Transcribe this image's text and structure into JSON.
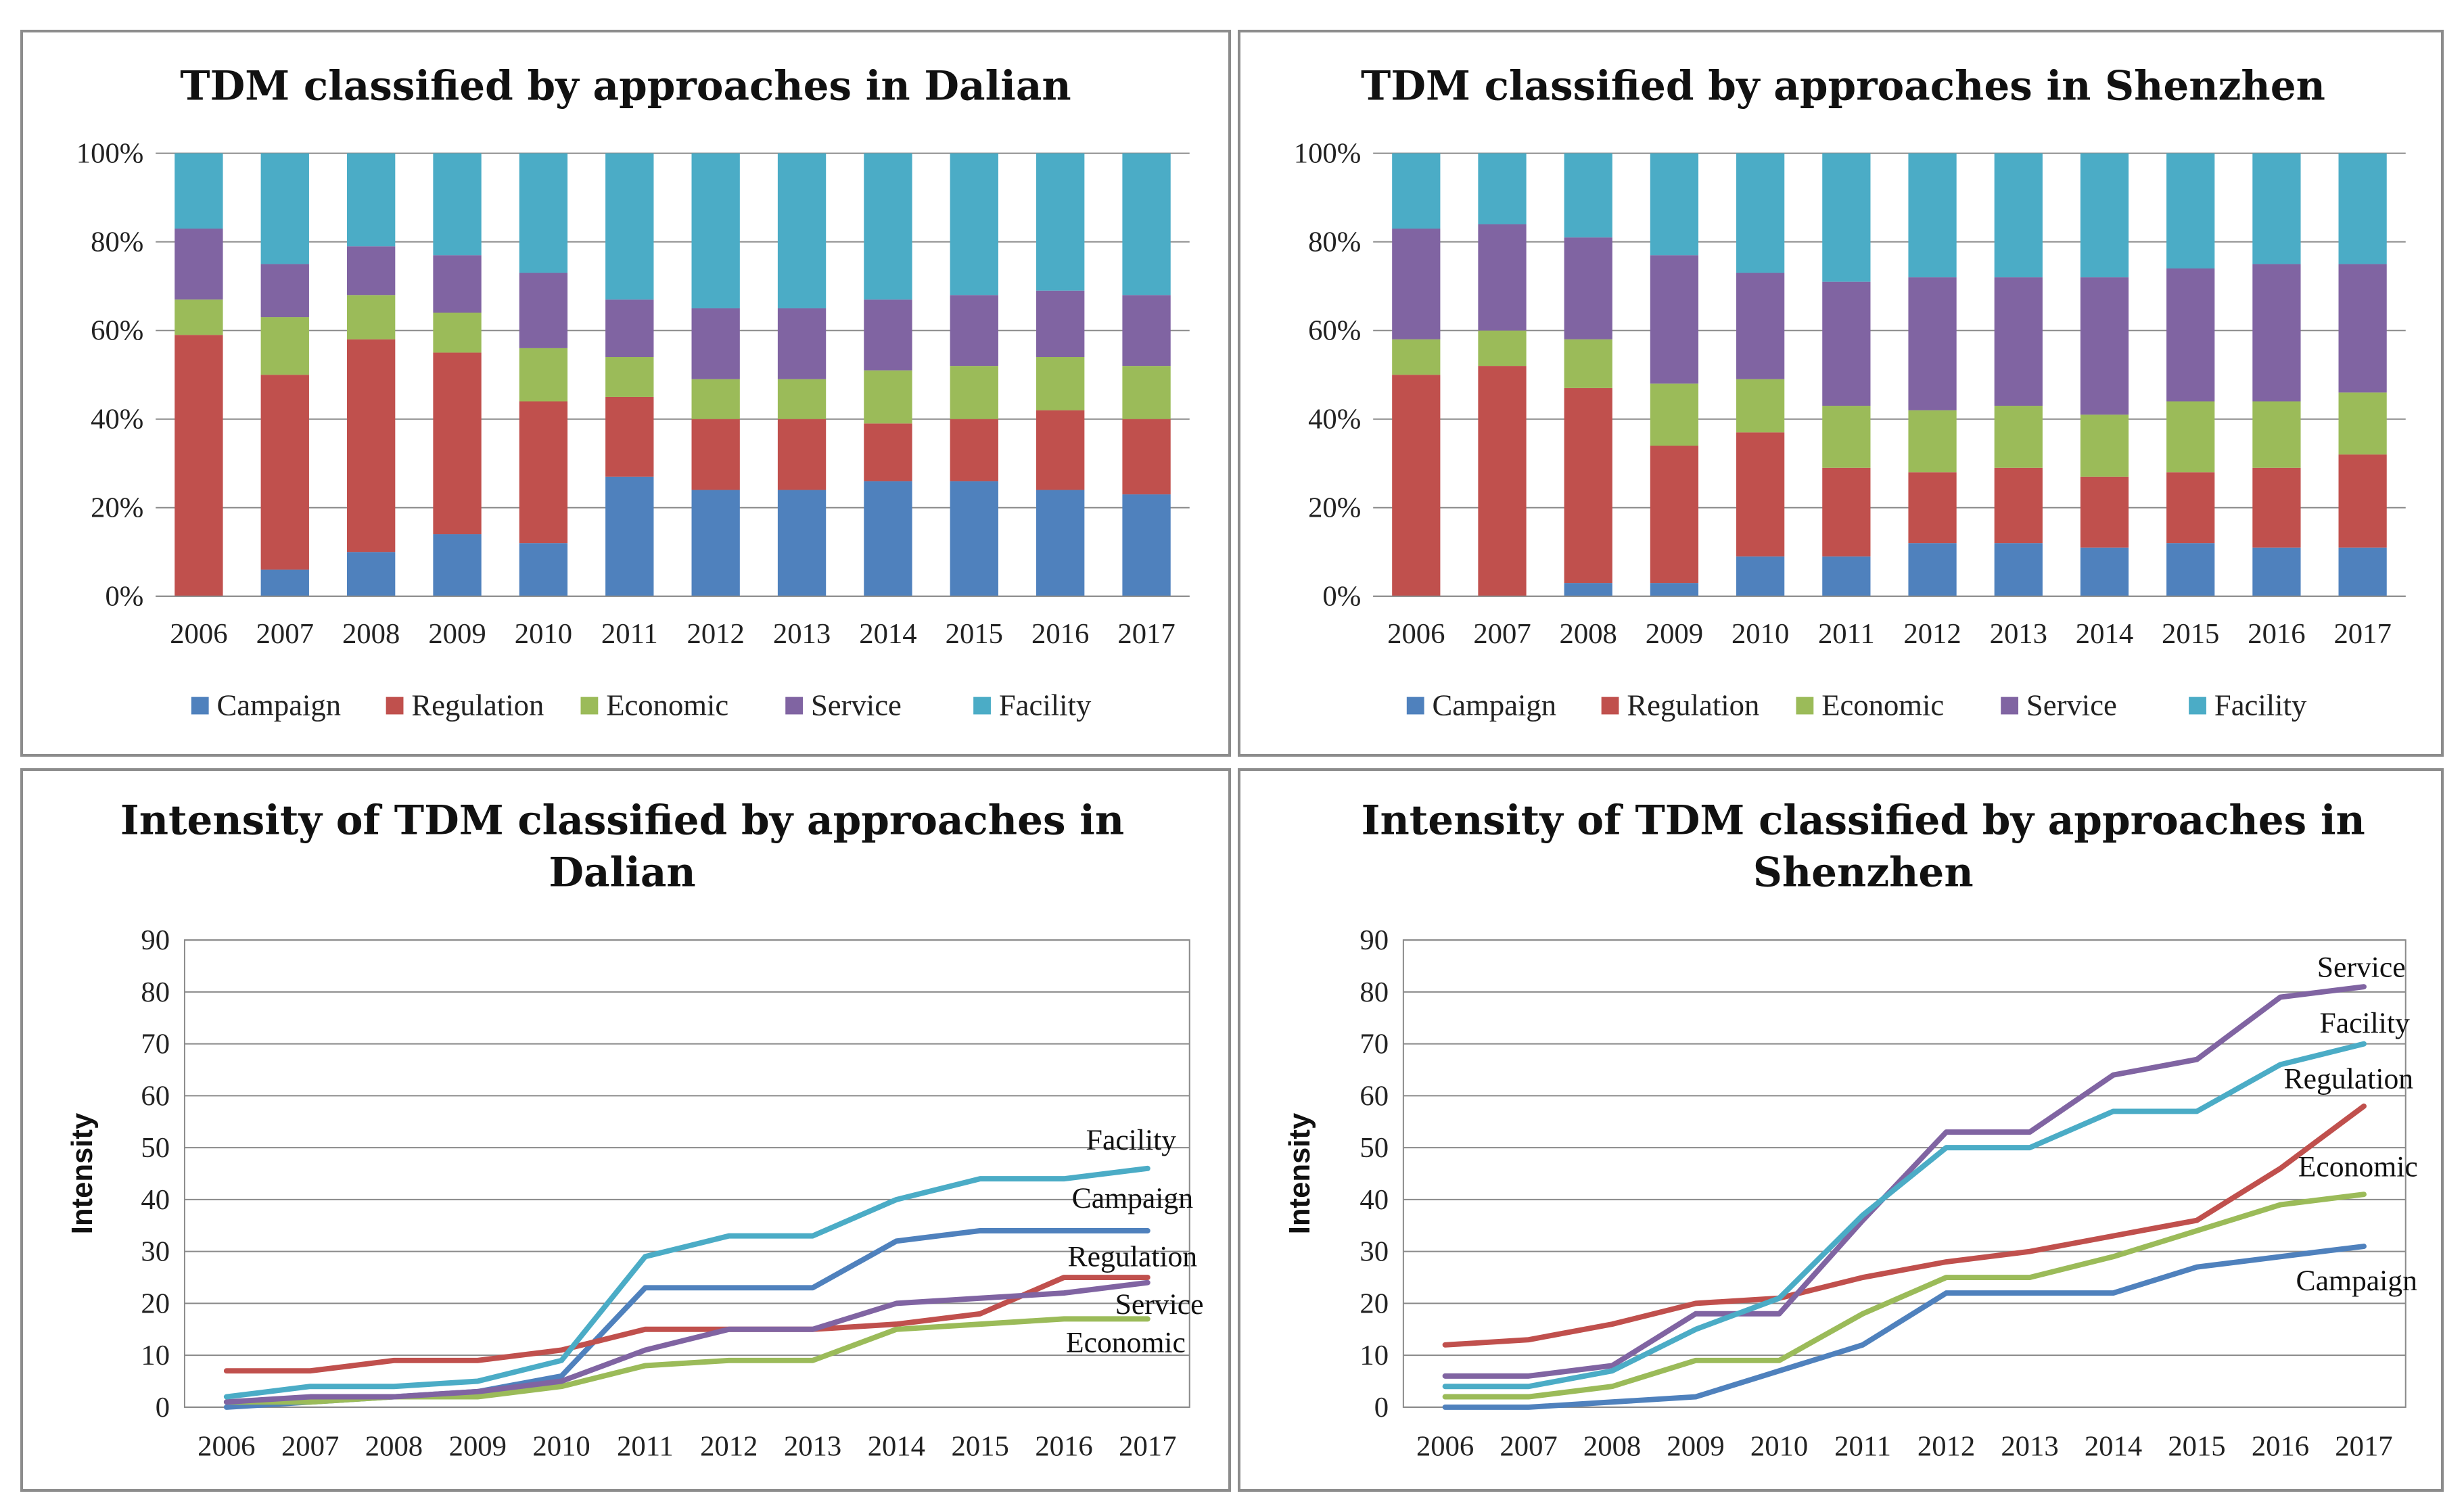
{
  "chart_data": [
    {
      "type": "bar",
      "stacked": "percent",
      "title": "TDM classified by approaches  in Dalian",
      "categories": [
        "2006",
        "2007",
        "2008",
        "2009",
        "2010",
        "2011",
        "2012",
        "2013",
        "2014",
        "2015",
        "2016",
        "2017"
      ],
      "yticks": [
        "0%",
        "20%",
        "40%",
        "60%",
        "80%",
        "100%"
      ],
      "ylim": [
        0,
        100
      ],
      "legend_position": "bottom",
      "series": [
        {
          "name": "Campaign",
          "color": "#4F81BD",
          "values": [
            0,
            6,
            10,
            14,
            12,
            27,
            24,
            24,
            26,
            26,
            24,
            23
          ]
        },
        {
          "name": "Regulation",
          "color": "#C0504D",
          "values": [
            59,
            44,
            48,
            41,
            32,
            18,
            16,
            16,
            13,
            14,
            18,
            17
          ]
        },
        {
          "name": "Economic",
          "color": "#9BBB59",
          "values": [
            8,
            13,
            10,
            9,
            12,
            9,
            9,
            9,
            12,
            12,
            12,
            12
          ]
        },
        {
          "name": "Service",
          "color": "#8064A2",
          "values": [
            16,
            12,
            11,
            13,
            17,
            13,
            16,
            16,
            16,
            16,
            15,
            16
          ]
        },
        {
          "name": "Facility",
          "color": "#4BACC6",
          "values": [
            17,
            25,
            21,
            23,
            27,
            33,
            35,
            35,
            33,
            32,
            31,
            32
          ]
        }
      ]
    },
    {
      "type": "bar",
      "stacked": "percent",
      "title": "TDM classified by approaches  in Shenzhen",
      "categories": [
        "2006",
        "2007",
        "2008",
        "2009",
        "2010",
        "2011",
        "2012",
        "2013",
        "2014",
        "2015",
        "2016",
        "2017"
      ],
      "yticks": [
        "0%",
        "20%",
        "40%",
        "60%",
        "80%",
        "100%"
      ],
      "ylim": [
        0,
        100
      ],
      "legend_position": "bottom",
      "series": [
        {
          "name": "Campaign",
          "color": "#4F81BD",
          "values": [
            0,
            0,
            3,
            3,
            9,
            9,
            12,
            12,
            11,
            12,
            11,
            11
          ]
        },
        {
          "name": "Regulation",
          "color": "#C0504D",
          "values": [
            50,
            52,
            44,
            31,
            28,
            20,
            16,
            17,
            16,
            16,
            18,
            21
          ]
        },
        {
          "name": "Economic",
          "color": "#9BBB59",
          "values": [
            8,
            8,
            11,
            14,
            12,
            14,
            14,
            14,
            14,
            16,
            15,
            14
          ]
        },
        {
          "name": "Service",
          "color": "#8064A2",
          "values": [
            25,
            24,
            23,
            29,
            24,
            28,
            30,
            29,
            31,
            30,
            31,
            29
          ]
        },
        {
          "name": "Facility",
          "color": "#4BACC6",
          "values": [
            17,
            16,
            19,
            23,
            27,
            29,
            28,
            28,
            28,
            26,
            25,
            25
          ]
        }
      ]
    },
    {
      "type": "line",
      "title_lines": [
        "Intensity of TDM classified by approaches  in",
        "Dalian"
      ],
      "categories": [
        "2006",
        "2007",
        "2008",
        "2009",
        "2010",
        "2011",
        "2012",
        "2013",
        "2014",
        "2015",
        "2016",
        "2017"
      ],
      "ylabel": "Intensity",
      "ylim": [
        0,
        90
      ],
      "yticks": [
        "0",
        "10",
        "20",
        "30",
        "40",
        "50",
        "60",
        "70",
        "80",
        "90"
      ],
      "series": [
        {
          "name": "Campaign",
          "label": "Campaign",
          "color": "#4F81BD",
          "values": [
            0,
            1,
            2,
            3,
            6,
            23,
            23,
            23,
            32,
            34,
            34,
            34
          ]
        },
        {
          "name": "Regulation",
          "label": "Regulation",
          "color": "#C0504D",
          "values": [
            7,
            7,
            9,
            9,
            11,
            15,
            15,
            15,
            16,
            18,
            25,
            25
          ]
        },
        {
          "name": "Economic",
          "label": "Economic",
          "color": "#9BBB59",
          "values": [
            1,
            1,
            2,
            2,
            4,
            8,
            9,
            9,
            15,
            16,
            17,
            17
          ]
        },
        {
          "name": "Service",
          "label": "Service",
          "color": "#8064A2",
          "values": [
            1,
            2,
            2,
            3,
            5,
            11,
            15,
            15,
            20,
            21,
            22,
            24
          ]
        },
        {
          "name": "Facility",
          "label": "Facility",
          "color": "#4BACC6",
          "values": [
            2,
            4,
            4,
            5,
            9,
            29,
            33,
            33,
            40,
            44,
            44,
            46
          ]
        }
      ]
    },
    {
      "type": "line",
      "title_lines": [
        "Intensity of TDM classified by approaches  in",
        "Shenzhen"
      ],
      "categories": [
        "2006",
        "2007",
        "2008",
        "2009",
        "2010",
        "2011",
        "2012",
        "2013",
        "2014",
        "2015",
        "2016",
        "2017"
      ],
      "ylabel": "Intensity",
      "ylim": [
        0,
        90
      ],
      "yticks": [
        "0",
        "10",
        "20",
        "30",
        "40",
        "50",
        "60",
        "70",
        "80",
        "90"
      ],
      "series": [
        {
          "name": "Campaign",
          "label": "Campaign",
          "color": "#4F81BD",
          "values": [
            0,
            0,
            1,
            2,
            7,
            12,
            22,
            22,
            22,
            27,
            29,
            31
          ]
        },
        {
          "name": "Regulation",
          "label": "Regulation",
          "color": "#C0504D",
          "values": [
            12,
            13,
            16,
            20,
            21,
            25,
            28,
            30,
            33,
            36,
            46,
            58
          ]
        },
        {
          "name": "Economic",
          "label": "Economic",
          "color": "#9BBB59",
          "values": [
            2,
            2,
            4,
            9,
            9,
            18,
            25,
            25,
            29,
            34,
            39,
            41
          ]
        },
        {
          "name": "Service",
          "label": "Service",
          "color": "#8064A2",
          "values": [
            6,
            6,
            8,
            18,
            18,
            36,
            53,
            53,
            64,
            67,
            79,
            81
          ]
        },
        {
          "name": "Facility",
          "label": "Facility",
          "color": "#4BACC6",
          "values": [
            4,
            4,
            7,
            15,
            21,
            37,
            50,
            50,
            57,
            57,
            66,
            70
          ]
        }
      ]
    }
  ]
}
